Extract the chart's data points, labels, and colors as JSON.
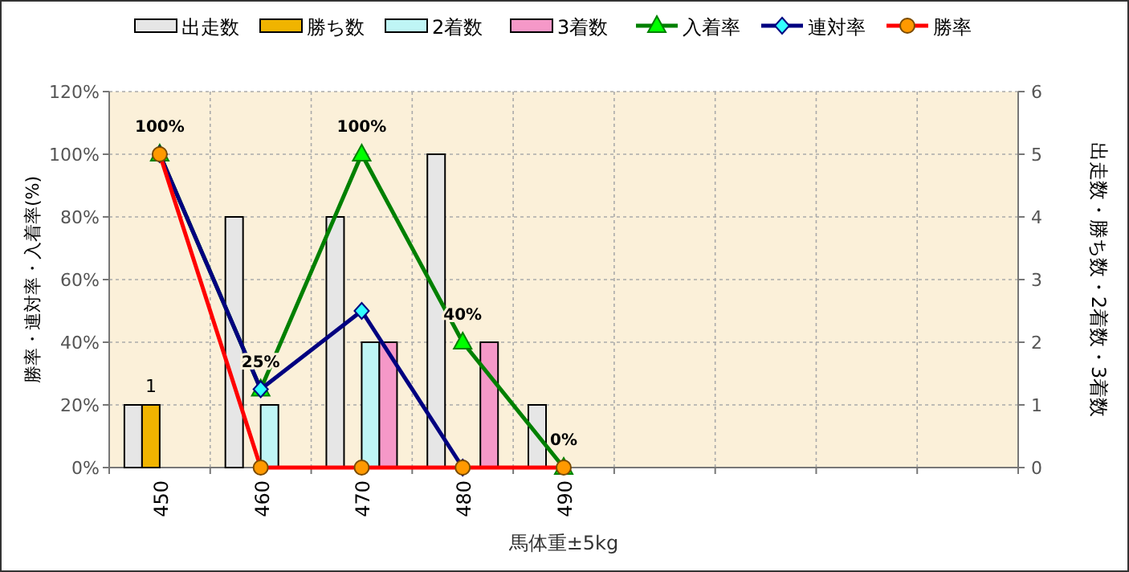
{
  "chart_data": {
    "type": "bar",
    "xlabel": "馬体重±5kg",
    "ylabel": "勝率・連対率・入着率(%)",
    "y2label": "出走数・勝ち数・2着数・3着数",
    "categories": [
      "450",
      "460",
      "470",
      "480",
      "490",
      null,
      null,
      null,
      null
    ],
    "ylim": [
      0,
      120
    ],
    "yticks": [
      {
        "value": 0,
        "label": "0%"
      },
      {
        "value": 20,
        "label": "20%"
      },
      {
        "value": 40,
        "label": "40%"
      },
      {
        "value": 60,
        "label": "60%"
      },
      {
        "value": 80,
        "label": "80%"
      },
      {
        "value": 100,
        "label": "100%"
      },
      {
        "value": 120,
        "label": "120%"
      }
    ],
    "y2lim": [
      0,
      6
    ],
    "y2ticks": [
      0,
      1,
      2,
      3,
      4,
      5,
      6
    ],
    "grid": true,
    "legend": "top",
    "series": [
      {
        "name": "出走数",
        "axis": "y2",
        "color": "#e6e6e6",
        "values": [
          1,
          4,
          4,
          5,
          1,
          null,
          null,
          null,
          null
        ]
      },
      {
        "name": "勝ち数",
        "axis": "y2",
        "color": "#f0b400",
        "values": [
          1,
          0,
          0,
          0,
          0,
          null,
          null,
          null,
          null
        ],
        "value_labels": [
          "1",
          null,
          null,
          null,
          null,
          null,
          null,
          null,
          null
        ]
      },
      {
        "name": "2着数",
        "axis": "y2",
        "color": "#bff5f5",
        "values": [
          0,
          1,
          2,
          0,
          0,
          null,
          null,
          null,
          null
        ]
      },
      {
        "name": "3着数",
        "axis": "y2",
        "color": "#f598c8",
        "values": [
          0,
          0,
          2,
          2,
          0,
          null,
          null,
          null,
          null
        ]
      },
      {
        "name": "入着率",
        "type": "line",
        "axis": "y",
        "color": "#008000",
        "marker": "triangle",
        "values": [
          100,
          25,
          100,
          40,
          0,
          null,
          null,
          null,
          null
        ],
        "value_labels": [
          "100%",
          "25%",
          "100%",
          "40%",
          "0%",
          null,
          null,
          null,
          null
        ]
      },
      {
        "name": "連対率",
        "type": "line",
        "axis": "y",
        "color": "#000080",
        "marker": "diamond",
        "values": [
          100,
          25,
          50,
          0,
          null,
          null,
          null,
          null,
          null
        ]
      },
      {
        "name": "勝率",
        "type": "line",
        "axis": "y",
        "color": "#ff0000",
        "marker": "circle",
        "values": [
          100,
          0,
          0,
          0,
          0,
          null,
          null,
          null,
          null
        ]
      }
    ]
  }
}
